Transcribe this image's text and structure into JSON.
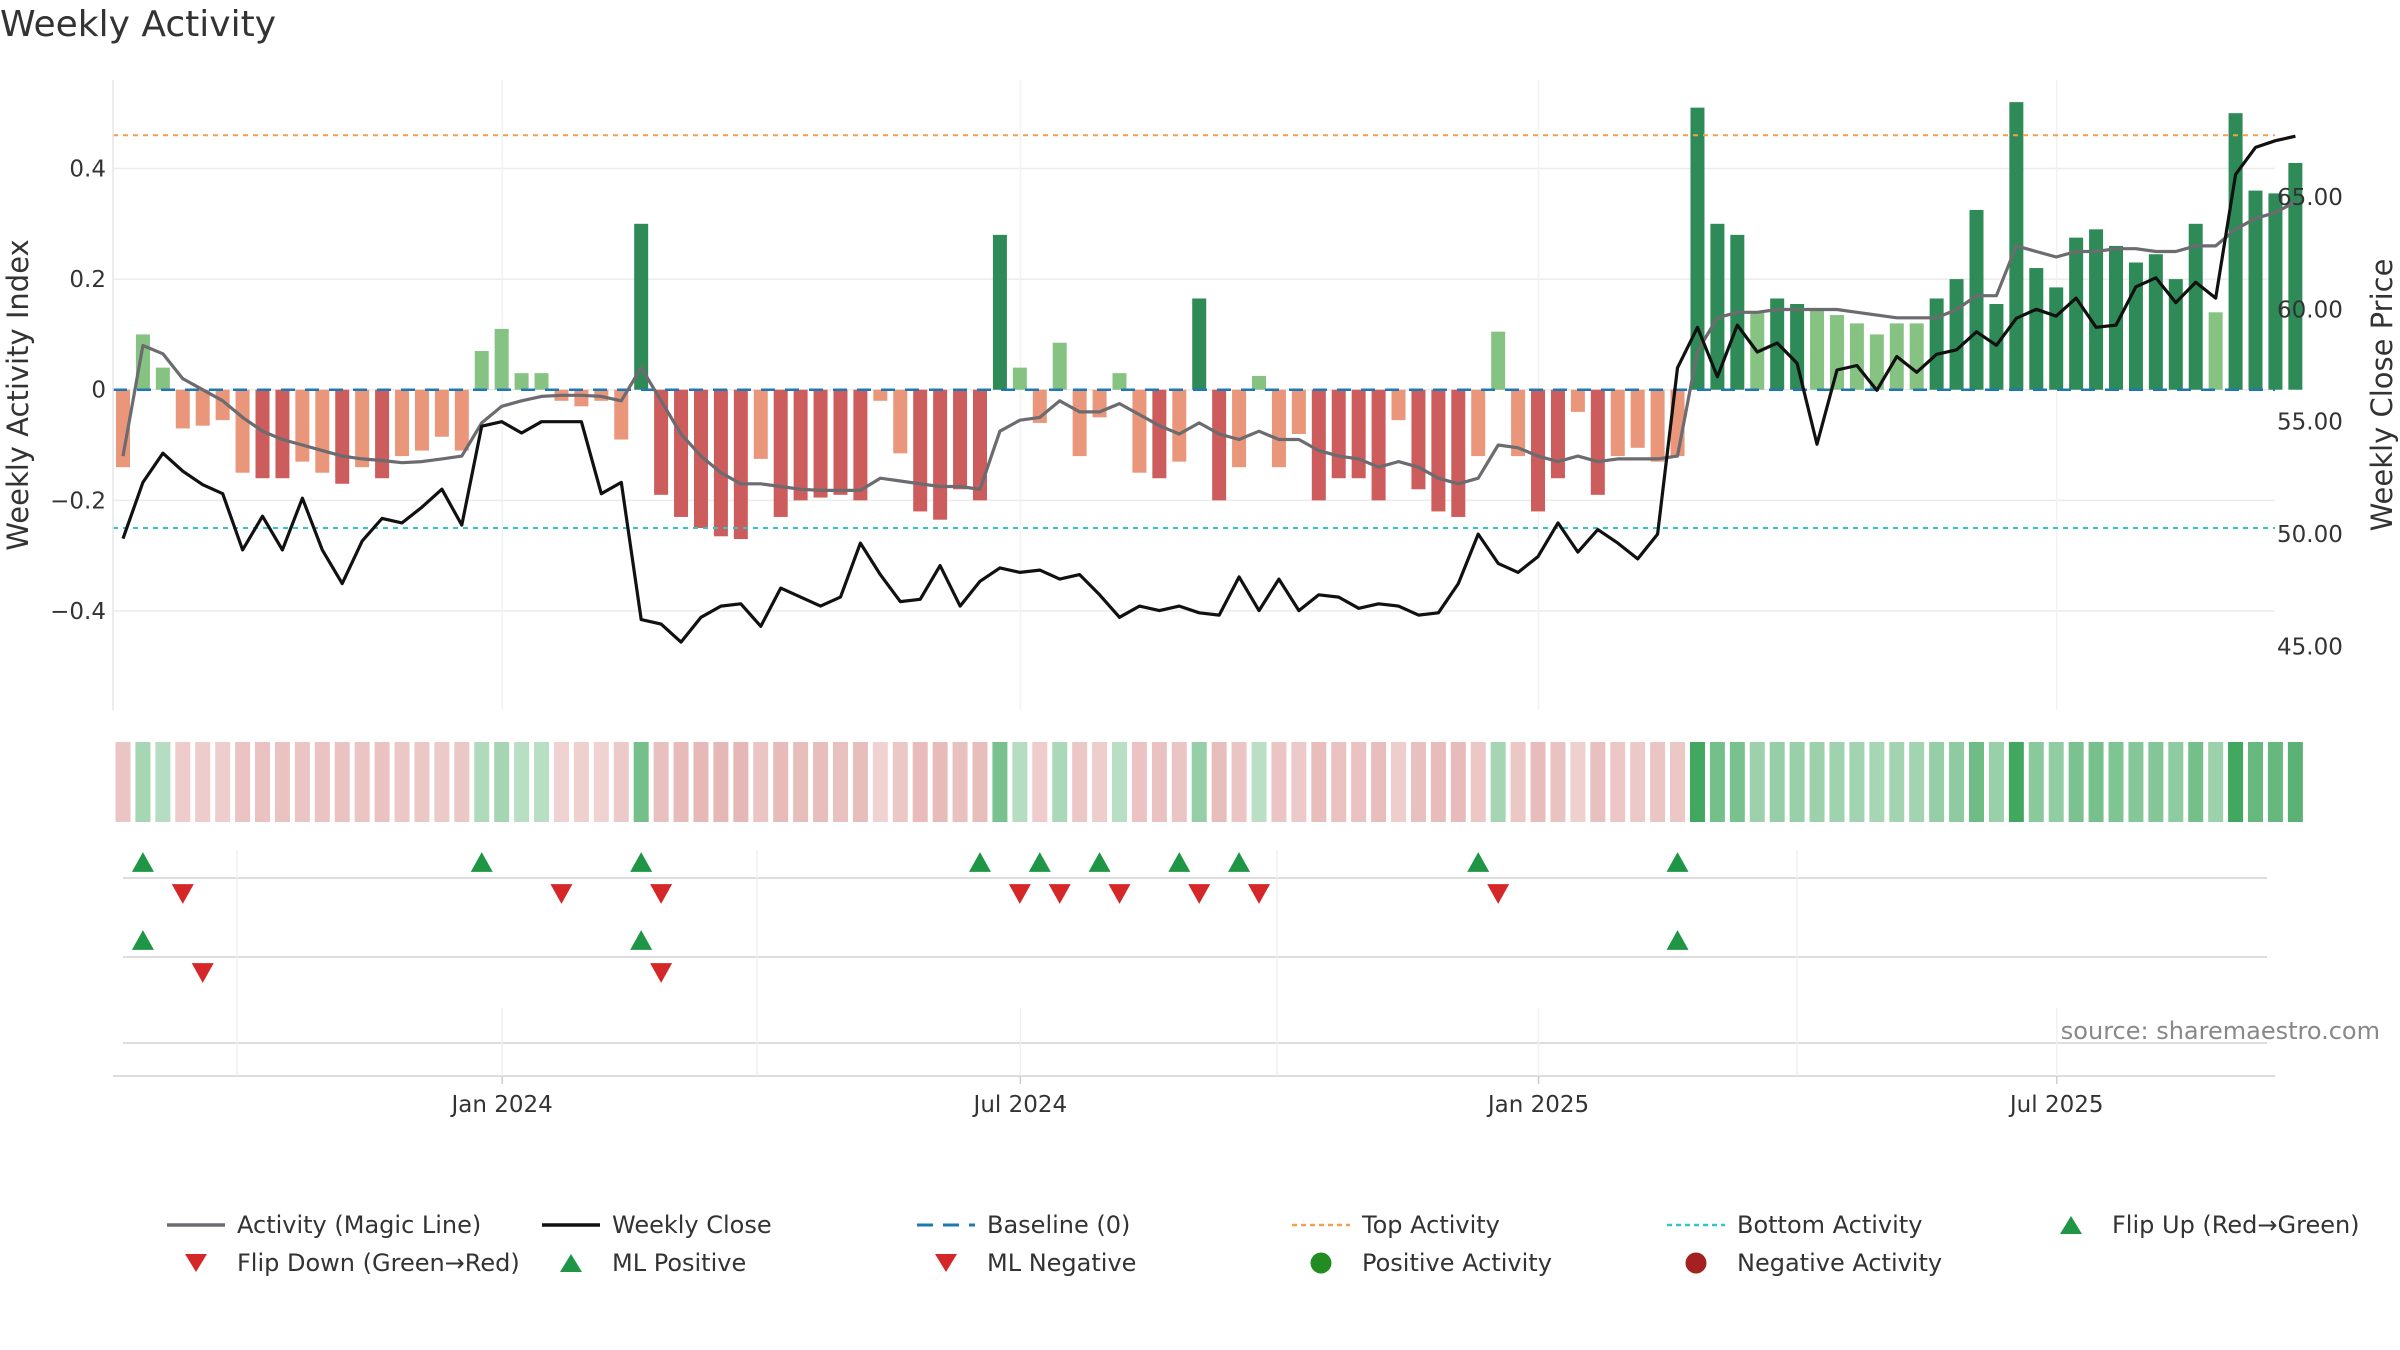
{
  "chart_data": {
    "type": "bar",
    "title": "Weekly Activity",
    "ylabel": "Weekly Activity Index",
    "y2label": "Weekly Close Price",
    "ylim": [
      -0.57,
      0.56
    ],
    "y2lim": [
      42.4,
      70.2
    ],
    "yticks": [
      -0.4,
      -0.2,
      0,
      0.2,
      0.4
    ],
    "ytick_labels": [
      "−0.4",
      "−0.2",
      "0",
      "0.2",
      "0.4"
    ],
    "y2ticks": [
      45,
      50,
      55,
      60,
      65
    ],
    "y2tick_labels": [
      "45.00",
      "50.00",
      "55.00",
      "60.00",
      "65.00"
    ],
    "xtick_labels": [
      "Jan 2024",
      "Jul 2024",
      "Jan 2025",
      "Jul 2025"
    ],
    "xtick_week_index": [
      19,
      45,
      71,
      97
    ],
    "top_activity": 0.46,
    "bottom_activity": -0.25,
    "activity_index": [
      -0.14,
      0.1,
      0.04,
      -0.07,
      -0.065,
      -0.055,
      -0.15,
      -0.16,
      -0.16,
      -0.13,
      -0.15,
      -0.17,
      -0.14,
      -0.16,
      -0.12,
      -0.11,
      -0.085,
      -0.11,
      0.07,
      0.11,
      0.03,
      0.03,
      -0.02,
      -0.03,
      -0.02,
      -0.09,
      0.3,
      -0.19,
      -0.23,
      -0.25,
      -0.265,
      -0.27,
      -0.125,
      -0.23,
      -0.2,
      -0.195,
      -0.19,
      -0.2,
      -0.02,
      -0.115,
      -0.22,
      -0.235,
      -0.18,
      -0.2,
      0.28,
      0.04,
      -0.06,
      0.085,
      -0.12,
      -0.05,
      0.03,
      -0.15,
      -0.16,
      -0.13,
      0.165,
      -0.2,
      -0.14,
      0.025,
      -0.14,
      -0.08,
      -0.2,
      -0.16,
      -0.16,
      -0.2,
      -0.055,
      -0.18,
      -0.22,
      -0.23,
      -0.12,
      0.105,
      -0.12,
      -0.22,
      -0.16,
      -0.04,
      -0.19,
      -0.12,
      -0.105,
      -0.13,
      -0.12,
      0.51,
      0.3,
      0.28,
      0.14,
      0.165,
      0.155,
      0.145,
      0.135,
      0.12,
      0.1,
      0.12,
      0.12,
      0.165,
      0.2,
      0.325,
      0.155,
      0.52,
      0.22,
      0.185,
      0.275,
      0.29,
      0.26,
      0.23,
      0.245,
      0.2,
      0.3,
      0.14,
      0.5,
      0.36,
      0.355,
      0.41
    ],
    "magic_line": [
      -0.12,
      0.08,
      0.065,
      0.02,
      0.0,
      -0.02,
      -0.05,
      -0.075,
      -0.09,
      -0.1,
      -0.11,
      -0.12,
      -0.125,
      -0.128,
      -0.132,
      -0.13,
      -0.125,
      -0.12,
      -0.06,
      -0.03,
      -0.02,
      -0.012,
      -0.01,
      -0.01,
      -0.012,
      -0.02,
      0.04,
      -0.02,
      -0.08,
      -0.12,
      -0.15,
      -0.17,
      -0.17,
      -0.175,
      -0.18,
      -0.182,
      -0.182,
      -0.182,
      -0.16,
      -0.165,
      -0.17,
      -0.175,
      -0.175,
      -0.18,
      -0.075,
      -0.055,
      -0.05,
      -0.02,
      -0.04,
      -0.04,
      -0.025,
      -0.045,
      -0.065,
      -0.08,
      -0.06,
      -0.08,
      -0.09,
      -0.075,
      -0.09,
      -0.09,
      -0.11,
      -0.12,
      -0.125,
      -0.14,
      -0.13,
      -0.14,
      -0.16,
      -0.17,
      -0.16,
      -0.1,
      -0.105,
      -0.12,
      -0.13,
      -0.12,
      -0.13,
      -0.125,
      -0.125,
      -0.125,
      -0.12,
      0.07,
      0.13,
      0.14,
      0.14,
      0.145,
      0.145,
      0.145,
      0.145,
      0.14,
      0.135,
      0.13,
      0.13,
      0.13,
      0.145,
      0.17,
      0.17,
      0.26,
      0.25,
      0.24,
      0.25,
      0.25,
      0.255,
      0.255,
      0.25,
      0.25,
      0.26,
      0.26,
      0.29,
      0.31,
      0.32,
      0.34
    ],
    "weekly_close": [
      49.8,
      52.3,
      53.6,
      52.8,
      52.2,
      51.8,
      49.3,
      50.8,
      49.3,
      51.6,
      49.3,
      47.8,
      49.7,
      50.7,
      50.5,
      51.2,
      52.0,
      50.4,
      54.8,
      55.0,
      54.5,
      55.0,
      55.0,
      55.0,
      51.8,
      52.3,
      46.2,
      46.0,
      45.2,
      46.3,
      46.8,
      46.9,
      45.9,
      47.6,
      47.2,
      46.8,
      47.2,
      49.6,
      48.2,
      47.0,
      47.1,
      48.6,
      46.8,
      47.9,
      48.5,
      48.3,
      48.4,
      48.0,
      48.2,
      47.3,
      46.3,
      46.8,
      46.6,
      46.8,
      46.5,
      46.4,
      48.1,
      46.6,
      48.0,
      46.6,
      47.3,
      47.2,
      46.7,
      46.9,
      46.8,
      46.4,
      46.5,
      47.8,
      50.0,
      48.7,
      48.3,
      49.0,
      50.5,
      49.2,
      50.2,
      49.6,
      48.9,
      50.0,
      57.4,
      59.2,
      57.0,
      59.3,
      58.1,
      58.5,
      57.6,
      54.0,
      57.3,
      57.5,
      56.4,
      57.9,
      57.2,
      58.0,
      58.2,
      59.0,
      58.4,
      59.6,
      60.0,
      59.7,
      60.5,
      59.2,
      59.3,
      61.0,
      61.4,
      60.3,
      61.2,
      60.5,
      66.0,
      67.2,
      67.5,
      67.7
    ],
    "flip_up": [
      1,
      18,
      26,
      43,
      46,
      49,
      53,
      56,
      68,
      78
    ],
    "flip_down": [
      3,
      22,
      27,
      45,
      47,
      50,
      54,
      57,
      69
    ],
    "ml_positive": [
      1,
      26,
      78
    ],
    "ml_negative": [
      4,
      27
    ],
    "series": [
      {
        "name": "Activity (Magic Line)",
        "color": "#6b6b70"
      },
      {
        "name": "Weekly Close",
        "color": "#111111"
      },
      {
        "name": "Baseline (0)",
        "color": "#1f77b4"
      },
      {
        "name": "Top Activity",
        "color": "#f0a050"
      },
      {
        "name": "Bottom Activity",
        "color": "#2ec8c8"
      },
      {
        "name": "Flip Up (Red→Green)",
        "color": "#1e9645"
      },
      {
        "name": "Flip Down (Green→Red)",
        "color": "#d62728"
      },
      {
        "name": "ML Positive",
        "color": "#1e9645"
      },
      {
        "name": "ML Negative",
        "color": "#d62728"
      },
      {
        "name": "Positive Activity",
        "color": "#228b22"
      },
      {
        "name": "Negative Activity",
        "color": "#a52020"
      }
    ],
    "source": "source: sharemaestro.com"
  }
}
